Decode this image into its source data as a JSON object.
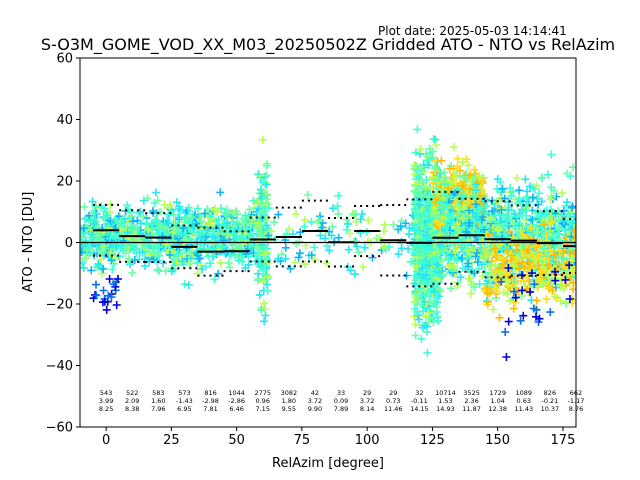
{
  "plot_date": "Plot date: 2025-05-03 14:14:41",
  "chart_data": {
    "type": "scatter",
    "title": "S-O3M_GOME_VOD_XX_M03_20250502Z Gridded ATO - NTO vs RelAzim",
    "xlabel": "RelAzim [degree]",
    "ylabel": "ATO - NTO [DU]",
    "xlim": [
      -10,
      180
    ],
    "ylim": [
      -60,
      60
    ],
    "xticks": [
      "0",
      "25",
      "50",
      "75",
      "100",
      "125",
      "150",
      "175"
    ],
    "xtick_values": [
      0,
      25,
      50,
      75,
      100,
      125,
      150,
      175
    ],
    "yticks": [
      "−60",
      "−40",
      "−20",
      "0",
      "20",
      "40",
      "60"
    ],
    "ytick_values": [
      -60,
      -40,
      -20,
      0,
      20,
      40,
      60
    ],
    "grid": false,
    "legend": "none",
    "marker": "+",
    "zero_line": 0,
    "colors": {
      "dark_blue": "#0000dd",
      "blue": "#0a6ef0",
      "sky": "#12b4f5",
      "cyan": "#27e6f0",
      "aqua": "#3cffd6",
      "mint": "#6dffa6",
      "green_yellow": "#b6ff55",
      "yellow": "#ffdd1e",
      "orange": "#ffbb00",
      "mean_line": "#000000",
      "std_line": "#000000"
    },
    "bins": [
      {
        "x_center": 0,
        "n": "543",
        "mean": "3.99",
        "std": "8.25"
      },
      {
        "x_center": 10,
        "n": "522",
        "mean": "2.09",
        "std": "8.38"
      },
      {
        "x_center": 20,
        "n": "583",
        "mean": "1.60",
        "std": "7.96"
      },
      {
        "x_center": 30,
        "n": "573",
        "mean": "-1.43",
        "std": "6.95"
      },
      {
        "x_center": 40,
        "n": "816",
        "mean": "-2.98",
        "std": "7.81"
      },
      {
        "x_center": 50,
        "n": "1044",
        "mean": "-2.86",
        "std": "6.46"
      },
      {
        "x_center": 60,
        "n": "2775",
        "mean": "0.96",
        "std": "7.15"
      },
      {
        "x_center": 70,
        "n": "3082",
        "mean": "1.80",
        "std": "9.55"
      },
      {
        "x_center": 80,
        "n": "42",
        "mean": "3.72",
        "std": "9.90"
      },
      {
        "x_center": 90,
        "n": "33",
        "mean": "0.09",
        "std": "7.89"
      },
      {
        "x_center": 100,
        "n": "29",
        "mean": "3.72",
        "std": "8.14"
      },
      {
        "x_center": 110,
        "n": "29",
        "mean": "0.73",
        "std": "11.46"
      },
      {
        "x_center": 120,
        "n": "32",
        "mean": "-0.11",
        "std": "14.15"
      },
      {
        "x_center": 130,
        "n": "10714",
        "mean": "1.53",
        "std": "14.93"
      },
      {
        "x_center": 140,
        "n": "3525",
        "mean": "2.36",
        "std": "11.87"
      },
      {
        "x_center": 150,
        "n": "1729",
        "mean": "1.04",
        "std": "12.38"
      },
      {
        "x_center": 160,
        "n": "1089",
        "mean": "0.63",
        "std": "11.43"
      },
      {
        "x_center": 170,
        "n": "826",
        "mean": "-0.21",
        "std": "10.37"
      },
      {
        "x_center": 180,
        "n": "662",
        "mean": "-1.17",
        "std": "8.76"
      }
    ]
  }
}
